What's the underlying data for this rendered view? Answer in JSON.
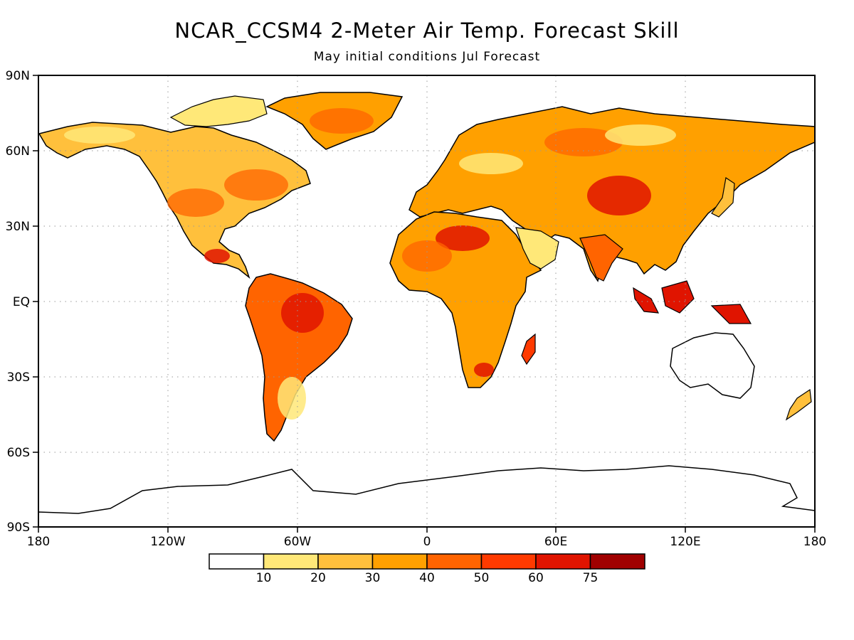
{
  "title": "NCAR_CCSM4 2-Meter Air Temp. Forecast Skill",
  "subtitle": "May initial conditions   Jul Forecast",
  "y_ticks": [
    "90N",
    "60N",
    "30N",
    "EQ",
    "30S",
    "60S",
    "90S"
  ],
  "x_ticks": [
    "180",
    "120W",
    "60W",
    "0",
    "60E",
    "120E",
    "180"
  ],
  "colorbar": {
    "labels": [
      "10",
      "20",
      "30",
      "40",
      "50",
      "60",
      "75"
    ],
    "colors": [
      "#ffffff",
      "#ffe878",
      "#ffc03c",
      "#ffa000",
      "#ff6400",
      "#ff3a00",
      "#e01400",
      "#a00000"
    ]
  },
  "colors": {
    "frame": "#000000",
    "grid": "#9a9a9a",
    "land_low": "#ffe878",
    "land_mid": "#ffa000",
    "land_high": "#e01400"
  }
}
